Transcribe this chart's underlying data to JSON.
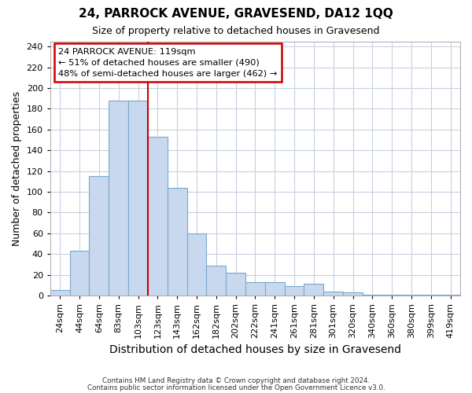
{
  "title": "24, PARROCK AVENUE, GRAVESEND, DA12 1QQ",
  "subtitle": "Size of property relative to detached houses in Gravesend",
  "xlabel": "Distribution of detached houses by size in Gravesend",
  "ylabel": "Number of detached properties",
  "categories": [
    "24sqm",
    "44sqm",
    "64sqm",
    "83sqm",
    "103sqm",
    "123sqm",
    "143sqm",
    "162sqm",
    "182sqm",
    "202sqm",
    "222sqm",
    "241sqm",
    "261sqm",
    "281sqm",
    "301sqm",
    "320sqm",
    "340sqm",
    "360sqm",
    "380sqm",
    "399sqm",
    "419sqm"
  ],
  "values": [
    5,
    43,
    115,
    188,
    188,
    153,
    104,
    60,
    29,
    22,
    13,
    13,
    9,
    11,
    4,
    3,
    1,
    1,
    1,
    1,
    1
  ],
  "bar_color": "#c8d8ee",
  "bar_edge_color": "#7ba8cc",
  "background_color": "#ffffff",
  "plot_bg_color": "#ffffff",
  "grid_color": "#c8d0e0",
  "vline_color": "#cc0000",
  "vline_x_index": 5,
  "annotation_box_color": "#cc0000",
  "annotation_lines": [
    "24 PARROCK AVENUE: 119sqm",
    "← 51% of detached houses are smaller (490)",
    "48% of semi-detached houses are larger (462) →"
  ],
  "ylim": [
    0,
    245
  ],
  "yticks": [
    0,
    20,
    40,
    60,
    80,
    100,
    120,
    140,
    160,
    180,
    200,
    220,
    240
  ],
  "footnote1": "Contains HM Land Registry data © Crown copyright and database right 2024.",
  "footnote2": "Contains public sector information licensed under the Open Government Licence v3.0."
}
